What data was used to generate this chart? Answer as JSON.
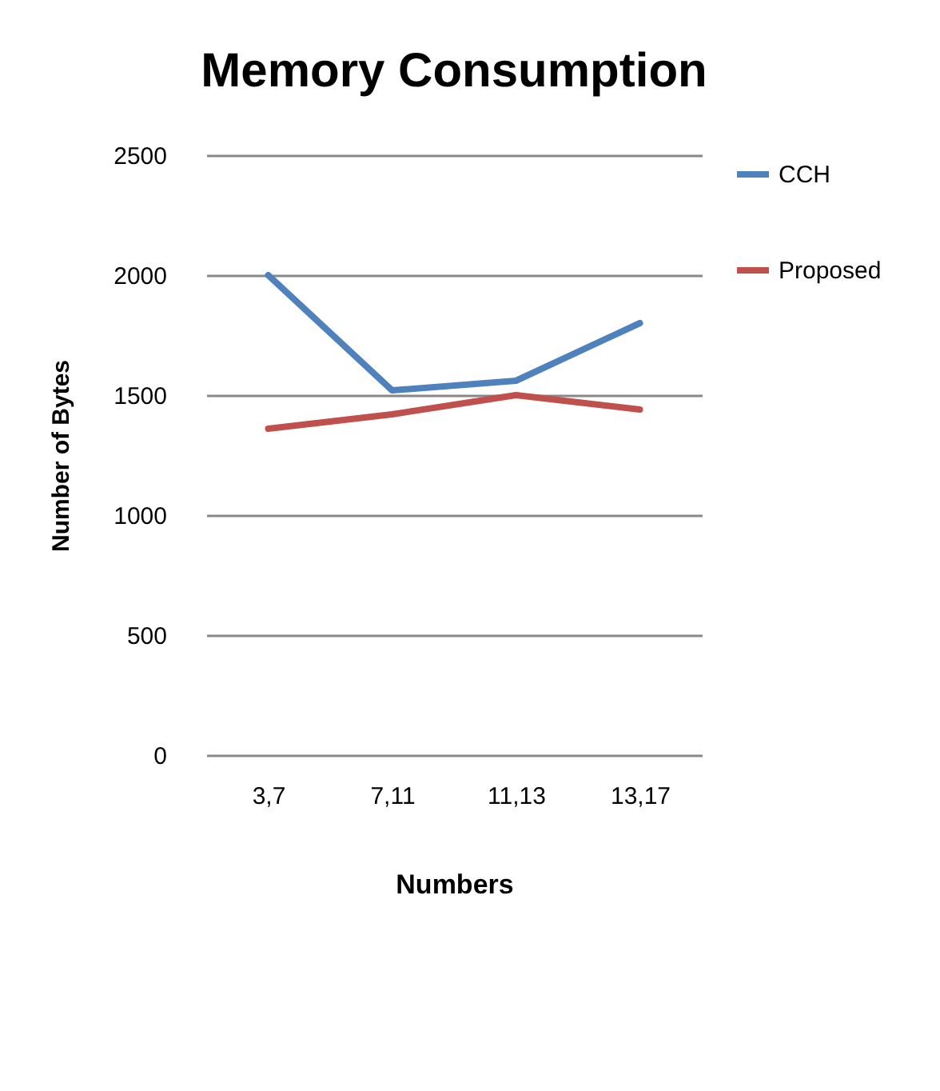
{
  "chart_data": {
    "type": "line",
    "title": "Memory Consumption",
    "xlabel": "Numbers",
    "ylabel": "Number of Bytes",
    "categories": [
      "3,7",
      "7,11",
      "11,13",
      "13,17"
    ],
    "series": [
      {
        "name": "CCH",
        "color": "#4f81bd",
        "values": [
          2000,
          1520,
          1560,
          1800
        ]
      },
      {
        "name": "Proposed",
        "color": "#c0504d",
        "values": [
          1360,
          1420,
          1500,
          1440
        ]
      }
    ],
    "ylim": [
      0,
      2500
    ],
    "yticks": [
      0,
      500,
      1000,
      1500,
      2000,
      2500
    ],
    "grid": "y",
    "legend": "right",
    "marker": "none"
  }
}
